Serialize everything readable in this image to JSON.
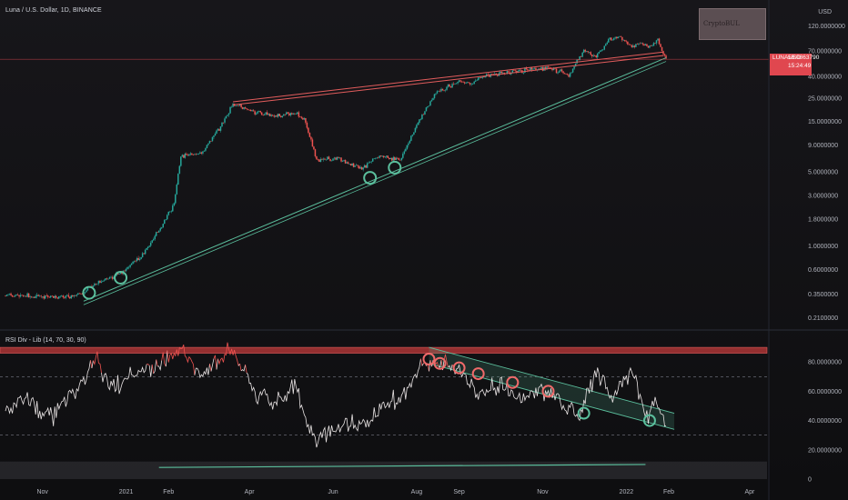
{
  "header": {
    "title": "Luna / U.S. Dollar, 1D, BINANCE",
    "currency": "USD"
  },
  "price_tag": {
    "symbol": "LUNAUSD",
    "price": "58.0863790",
    "countdown": "15:24:49"
  },
  "rsi_panel": {
    "title": "RSI Div - Lib (14, 70, 30, 90)"
  },
  "colors": {
    "background": "#131722",
    "candle_up": "#26a69a",
    "candle_down": "#ef5350",
    "resistance": "#e25c5c",
    "support": "#5bbf9d",
    "rsi_band": "#c0393b",
    "price_tag": "#e0474f"
  },
  "chart_data": [
    {
      "type": "candlestick",
      "y_scale": "log",
      "ylim": [
        0.17,
        160
      ],
      "x_ticks": [
        "Nov",
        "2021",
        "Feb",
        "Apr",
        "Jun",
        "Aug",
        "Sep",
        "Nov",
        "2022",
        "Feb",
        "Apr"
      ],
      "y_ticks": [
        "120.0000000",
        "70.0000000",
        "40.0000000",
        "25.0000000",
        "15.0000000",
        "9.0000000",
        "5.0000000",
        "3.0000000",
        "1.8000000",
        "1.0000000",
        "0.6000000",
        "0.3500000",
        "0.2100000"
      ],
      "price_path": [
        {
          "date": "2020-10-05",
          "price": 0.34
        },
        {
          "date": "2020-11-01",
          "price": 0.33
        },
        {
          "date": "2020-11-25",
          "price": 0.33
        },
        {
          "date": "2020-12-12",
          "price": 0.45
        },
        {
          "date": "2020-12-28",
          "price": 0.55
        },
        {
          "date": "2021-01-12",
          "price": 0.8
        },
        {
          "date": "2021-01-25",
          "price": 1.4
        },
        {
          "date": "2021-02-05",
          "price": 2.5
        },
        {
          "date": "2021-02-10",
          "price": 7.0
        },
        {
          "date": "2021-02-25",
          "price": 7.5
        },
        {
          "date": "2021-03-10",
          "price": 13
        },
        {
          "date": "2021-03-20",
          "price": 22
        },
        {
          "date": "2021-04-05",
          "price": 18
        },
        {
          "date": "2021-04-20",
          "price": 17
        },
        {
          "date": "2021-05-05",
          "price": 18
        },
        {
          "date": "2021-05-12",
          "price": 15
        },
        {
          "date": "2021-05-20",
          "price": 6.5
        },
        {
          "date": "2021-06-05",
          "price": 6.8
        },
        {
          "date": "2021-06-22",
          "price": 5.3
        },
        {
          "date": "2021-07-05",
          "price": 7.2
        },
        {
          "date": "2021-07-20",
          "price": 6.5
        },
        {
          "date": "2021-08-01",
          "price": 14
        },
        {
          "date": "2021-08-15",
          "price": 28
        },
        {
          "date": "2021-09-01",
          "price": 36
        },
        {
          "date": "2021-09-10",
          "price": 34
        },
        {
          "date": "2021-09-20",
          "price": 41
        },
        {
          "date": "2021-10-05",
          "price": 43
        },
        {
          "date": "2021-10-20",
          "price": 46
        },
        {
          "date": "2021-11-05",
          "price": 48
        },
        {
          "date": "2021-11-20",
          "price": 41
        },
        {
          "date": "2021-12-01",
          "price": 70
        },
        {
          "date": "2021-12-10",
          "price": 62
        },
        {
          "date": "2021-12-20",
          "price": 90
        },
        {
          "date": "2021-12-27",
          "price": 95
        },
        {
          "date": "2022-01-05",
          "price": 78
        },
        {
          "date": "2022-01-12",
          "price": 82
        },
        {
          "date": "2022-01-18",
          "price": 75
        },
        {
          "date": "2022-01-24",
          "price": 88
        },
        {
          "date": "2022-01-30",
          "price": 58
        }
      ],
      "support_line": {
        "start": {
          "date": "2020-12-01",
          "price": 0.3
        },
        "end": {
          "date": "2022-01-30",
          "price": 60
        }
      },
      "resistance_lines": [
        {
          "start": {
            "date": "2021-03-20",
            "price": 23
          },
          "end": {
            "date": "2022-01-28",
            "price": 68
          }
        },
        {
          "start": {
            "date": "2021-03-20",
            "price": 21.5
          },
          "end": {
            "date": "2022-01-28",
            "price": 63
          }
        }
      ],
      "touch_points": [
        {
          "date": "2020-12-05",
          "price": 0.36
        },
        {
          "date": "2020-12-28",
          "price": 0.5
        },
        {
          "date": "2021-06-28",
          "price": 4.4
        },
        {
          "date": "2021-07-16",
          "price": 5.5
        }
      ],
      "last_price": 58.086379
    },
    {
      "type": "line",
      "name": "RSI Div - Lib (14, 70, 30, 90)",
      "ylim": [
        0,
        100
      ],
      "y_ticks": [
        "80.0000000",
        "60.0000000",
        "40.0000000",
        "20.0000000",
        "0"
      ],
      "overbought": 70,
      "oversold": 30,
      "extreme_band": [
        86,
        90
      ],
      "rsi_path": [
        {
          "date": "2020-10-05",
          "rsi": 45
        },
        {
          "date": "2020-10-20",
          "rsi": 55
        },
        {
          "date": "2020-11-05",
          "rsi": 42
        },
        {
          "date": "2020-11-20",
          "rsi": 56
        },
        {
          "date": "2020-12-01",
          "rsi": 68
        },
        {
          "date": "2020-12-10",
          "rsi": 82
        },
        {
          "date": "2020-12-20",
          "rsi": 62
        },
        {
          "date": "2021-01-01",
          "rsi": 70
        },
        {
          "date": "2021-01-15",
          "rsi": 75
        },
        {
          "date": "2021-02-01",
          "rsi": 82
        },
        {
          "date": "2021-02-10",
          "rsi": 92
        },
        {
          "date": "2021-02-25",
          "rsi": 70
        },
        {
          "date": "2021-03-10",
          "rsi": 82
        },
        {
          "date": "2021-03-20",
          "rsi": 90
        },
        {
          "date": "2021-04-05",
          "rsi": 58
        },
        {
          "date": "2021-04-20",
          "rsi": 52
        },
        {
          "date": "2021-05-05",
          "rsi": 62
        },
        {
          "date": "2021-05-20",
          "rsi": 25
        },
        {
          "date": "2021-06-05",
          "rsi": 38
        },
        {
          "date": "2021-06-22",
          "rsi": 38
        },
        {
          "date": "2021-07-10",
          "rsi": 50
        },
        {
          "date": "2021-07-25",
          "rsi": 60
        },
        {
          "date": "2021-08-05",
          "rsi": 80
        },
        {
          "date": "2021-08-20",
          "rsi": 78
        },
        {
          "date": "2021-09-01",
          "rsi": 75
        },
        {
          "date": "2021-09-15",
          "rsi": 58
        },
        {
          "date": "2021-10-01",
          "rsi": 64
        },
        {
          "date": "2021-10-15",
          "rsi": 55
        },
        {
          "date": "2021-11-01",
          "rsi": 60
        },
        {
          "date": "2021-11-15",
          "rsi": 50
        },
        {
          "date": "2021-11-28",
          "rsi": 44
        },
        {
          "date": "2021-12-10",
          "rsi": 75
        },
        {
          "date": "2021-12-22",
          "rsi": 55
        },
        {
          "date": "2022-01-05",
          "rsi": 78
        },
        {
          "date": "2022-01-15",
          "rsi": 42
        },
        {
          "date": "2022-01-22",
          "rsi": 58
        },
        {
          "date": "2022-01-30",
          "rsi": 36
        }
      ],
      "trendlines": [
        {
          "start": {
            "date": "2021-08-10",
            "rsi": 90
          },
          "end": {
            "date": "2022-02-05",
            "rsi": 45
          }
        },
        {
          "start": {
            "date": "2021-08-10",
            "rsi": 79
          },
          "end": {
            "date": "2022-02-05",
            "rsi": 34
          }
        }
      ],
      "bearish_markers": [
        {
          "date": "2021-08-10",
          "rsi": 82
        },
        {
          "date": "2021-08-18",
          "rsi": 79
        },
        {
          "date": "2021-09-01",
          "rsi": 76
        },
        {
          "date": "2021-09-15",
          "rsi": 72
        },
        {
          "date": "2021-10-10",
          "rsi": 66
        },
        {
          "date": "2021-11-05",
          "rsi": 60
        }
      ],
      "bullish_markers": [
        {
          "date": "2021-12-01",
          "rsi": 45
        },
        {
          "date": "2022-01-18",
          "rsi": 40
        }
      ],
      "divergence_line": {
        "start": {
          "date": "2021-01-25",
          "rsi": 3
        },
        "end": {
          "date": "2022-01-15",
          "rsi": 5
        }
      }
    }
  ]
}
